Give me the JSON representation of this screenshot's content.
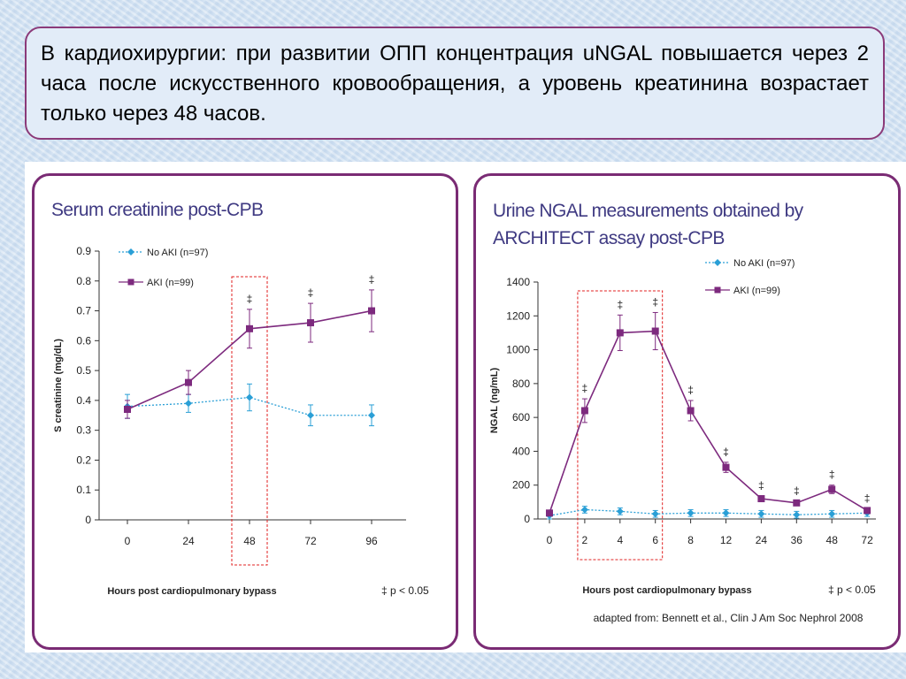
{
  "caption": "В кардиохирургии: при развитии ОПП концентрация uNGAL повышается через 2 часа после искусственного кровообращения, а уровень креатинина возрастает только через 48 часов.",
  "colors": {
    "no_aki": "#2a9fd6",
    "aki": "#7d2a7e",
    "highlight": "#e02020",
    "panel_border": "#7a2b74",
    "title": "#3f3a82"
  },
  "chart_data": [
    {
      "type": "line",
      "title": "Serum creatinine post-CPB",
      "xlabel": "Hours post cardiopulmonary bypass",
      "ylabel": "S creatinine (mg/dL)",
      "categories": [
        "0",
        "24",
        "48",
        "72",
        "96"
      ],
      "ylim": [
        0,
        0.9
      ],
      "yticks": [
        "0",
        "0.1",
        "0.2",
        "0.3",
        "0.4",
        "0.5",
        "0.6",
        "0.7",
        "0.8",
        "0.9"
      ],
      "series": [
        {
          "name": "No AKI (n=97)",
          "marker": "diamond",
          "line": "dotted",
          "values": [
            0.38,
            0.39,
            0.41,
            0.35,
            0.35
          ],
          "err": [
            0.04,
            0.03,
            0.045,
            0.035,
            0.035
          ]
        },
        {
          "name": "AKI (n=99)",
          "marker": "square",
          "line": "solid",
          "values": [
            0.37,
            0.46,
            0.64,
            0.66,
            0.7
          ],
          "err": [
            0.03,
            0.04,
            0.065,
            0.065,
            0.07
          ]
        }
      ],
      "significance_marks": [
        "48",
        "72",
        "96"
      ],
      "significance_symbol": "‡",
      "highlight_categories": [
        "48"
      ],
      "footnote": "‡ p < 0.05",
      "grid": false,
      "legend": "top-left"
    },
    {
      "type": "line",
      "title_lines": [
        "Urine NGAL measurements obtained by",
        "ARCHITECT assay post-CPB"
      ],
      "xlabel": "Hours post cardiopulmonary bypass",
      "ylabel": "NGAL (ng/mL)",
      "categories": [
        "0",
        "2",
        "4",
        "6",
        "8",
        "12",
        "24",
        "36",
        "48",
        "72"
      ],
      "ylim": [
        0,
        1400
      ],
      "yticks": [
        "0",
        "200",
        "400",
        "600",
        "800",
        "1000",
        "1200",
        "1400"
      ],
      "series": [
        {
          "name": "No AKI (n=97)",
          "marker": "diamond",
          "line": "dotted",
          "values": [
            20,
            55,
            45,
            30,
            35,
            35,
            30,
            25,
            30,
            35
          ],
          "err": [
            20,
            20,
            20,
            20,
            20,
            20,
            20,
            20,
            20,
            20
          ]
        },
        {
          "name": "AKI (n=99)",
          "marker": "square",
          "line": "solid",
          "values": [
            35,
            640,
            1100,
            1110,
            640,
            305,
            120,
            95,
            175,
            50
          ],
          "err": [
            10,
            70,
            105,
            110,
            60,
            30,
            15,
            10,
            25,
            10
          ]
        }
      ],
      "significance_marks": [
        "2",
        "4",
        "6",
        "8",
        "12",
        "24",
        "36",
        "48",
        "72"
      ],
      "significance_symbol": "‡",
      "highlight_categories": [
        "2",
        "4",
        "6"
      ],
      "footnote": "‡ p < 0.05",
      "source": "adapted from: Bennett et al., Clin J Am Soc Nephrol 2008",
      "grid": false,
      "legend": "top-right"
    }
  ]
}
